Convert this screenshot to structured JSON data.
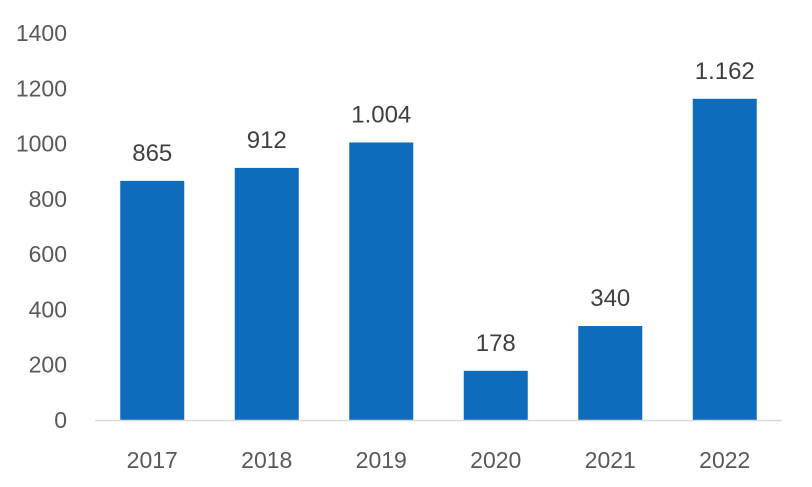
{
  "chart_data": {
    "type": "bar",
    "title": "",
    "xlabel": "",
    "ylabel": "",
    "categories": [
      "2017",
      "2018",
      "2019",
      "2020",
      "2021",
      "2022"
    ],
    "values": [
      865,
      912,
      1004,
      178,
      340,
      1162
    ],
    "value_labels": [
      "865",
      "912",
      "1.004",
      "178",
      "340",
      "1.162"
    ],
    "ylim": [
      0,
      1400
    ],
    "yticks": [
      0,
      200,
      400,
      600,
      800,
      1000,
      1200,
      1400
    ],
    "ytick_labels": [
      "0",
      "200",
      "400",
      "600",
      "800",
      "1000",
      "1200",
      "1400"
    ],
    "grid": false,
    "legend": "none",
    "colors": {
      "bar": "#0f6cbd",
      "axis": "#d9d9d9"
    }
  }
}
